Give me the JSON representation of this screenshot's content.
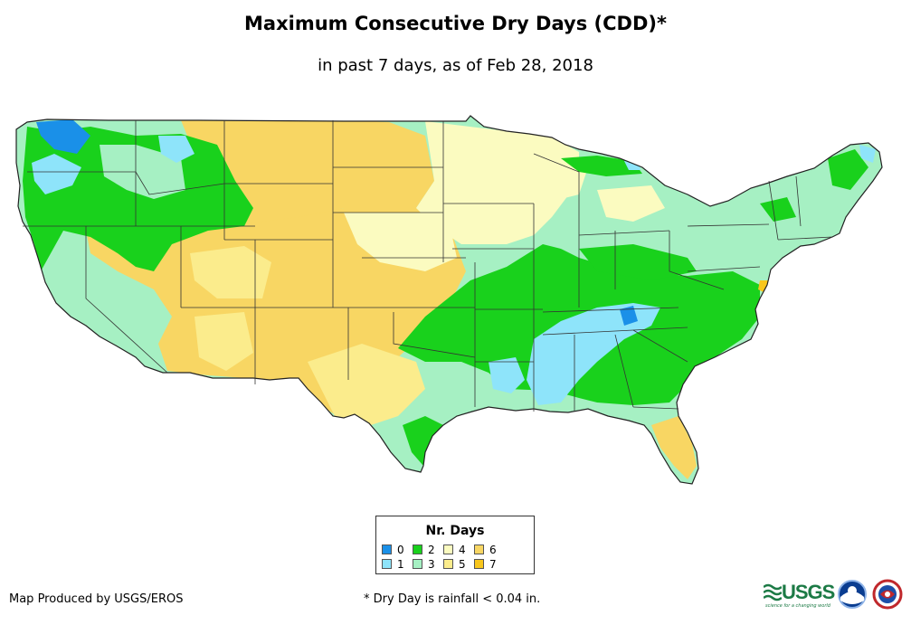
{
  "header": {
    "title": "Maximum Consecutive Dry Days (CDD)*",
    "subtitle": "in past 7 days, as of Feb 28, 2018"
  },
  "legend": {
    "title": "Nr. Days",
    "items": [
      {
        "label": "0",
        "color": "#1a90e8"
      },
      {
        "label": "1",
        "color": "#8ee4fa"
      },
      {
        "label": "2",
        "color": "#19d11c"
      },
      {
        "label": "3",
        "color": "#a6f0c3"
      },
      {
        "label": "4",
        "color": "#fbfbc0"
      },
      {
        "label": "5",
        "color": "#fbec8c"
      },
      {
        "label": "6",
        "color": "#f8d663"
      },
      {
        "label": "7",
        "color": "#f8c61c"
      }
    ]
  },
  "footer": {
    "producer": "Map Produced by USGS/EROS",
    "note": "* Dry Day is rainfall < 0.04 in."
  },
  "logos": {
    "usgs": "USGS",
    "usgs_tagline": "science for a changing world",
    "noaa": "noaa",
    "nws": "NWS"
  }
}
